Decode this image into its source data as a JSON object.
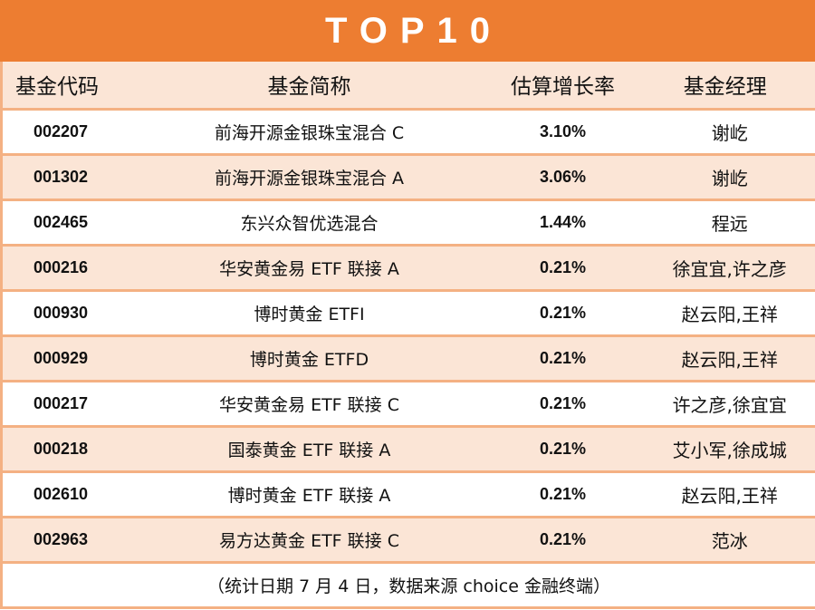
{
  "title": "TOP10",
  "colors": {
    "title_bg": "#ED7D31",
    "title_text": "#FFFFFF",
    "header_bg": "#FBE5D6",
    "alt_row_bg": "#FBE5D6",
    "border": "#F4B183"
  },
  "table": {
    "headers": [
      "基金代码",
      "基金简称",
      "估算增长率",
      "基金经理"
    ],
    "rows": [
      {
        "code": "002207",
        "name": "前海开源金银珠宝混合 C",
        "rate": "3.10%",
        "manager": "谢屹"
      },
      {
        "code": "001302",
        "name": "前海开源金银珠宝混合 A",
        "rate": "3.06%",
        "manager": "谢屹"
      },
      {
        "code": "002465",
        "name": "东兴众智优选混合",
        "rate": "1.44%",
        "manager": "程远"
      },
      {
        "code": "000216",
        "name": "华安黄金易 ETF 联接 A",
        "rate": "0.21%",
        "manager": "徐宜宜,许之彦"
      },
      {
        "code": "000930",
        "name": "博时黄金 ETFI",
        "rate": "0.21%",
        "manager": "赵云阳,王祥"
      },
      {
        "code": "000929",
        "name": "博时黄金 ETFD",
        "rate": "0.21%",
        "manager": "赵云阳,王祥"
      },
      {
        "code": "000217",
        "name": "华安黄金易 ETF 联接 C",
        "rate": "0.21%",
        "manager": "许之彦,徐宜宜"
      },
      {
        "code": "000218",
        "name": "国泰黄金 ETF 联接 A",
        "rate": "0.21%",
        "manager": "艾小军,徐成城"
      },
      {
        "code": "002610",
        "name": "博时黄金 ETF 联接 A",
        "rate": "0.21%",
        "manager": "赵云阳,王祥"
      },
      {
        "code": "002963",
        "name": "易方达黄金 ETF 联接 C",
        "rate": "0.21%",
        "manager": "范冰"
      }
    ],
    "footer": "（统计日期 7 月 4 日，数据来源 choice 金融终端）"
  }
}
